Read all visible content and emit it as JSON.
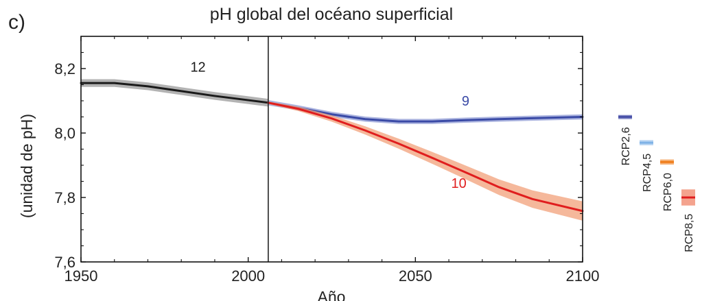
{
  "panel_label": "c)",
  "chart_data": {
    "type": "line",
    "title": "pH global del océano superficial",
    "xlabel": "Año",
    "ylabel": "(unidad de pH)",
    "xlim": [
      1950,
      2100
    ],
    "ylim": [
      7.6,
      8.3
    ],
    "x_ticks": [
      1950,
      2000,
      2050,
      2100
    ],
    "x_tick_labels": [
      "1950",
      "2000",
      "2050",
      "2100"
    ],
    "y_ticks": [
      7.6,
      7.8,
      8.0,
      8.2
    ],
    "y_tick_labels": [
      "7,6",
      "7,8",
      "8,0",
      "8,2"
    ],
    "divider_year": 2006,
    "grid": false,
    "series": [
      {
        "key": "historical",
        "color": "#1a1a1a",
        "band_color": "#9a9a9a",
        "label": "12",
        "label_at": [
          1985,
          8.19
        ],
        "x": [
          1950,
          1960,
          1970,
          1980,
          1990,
          2000,
          2006
        ],
        "y": [
          8.155,
          8.155,
          8.145,
          8.13,
          8.115,
          8.102,
          8.094
        ],
        "uncertainty": 0.012
      },
      {
        "key": "rcp26",
        "color": "#3a4aa6",
        "band_color": "#8e9ad4",
        "label": "9",
        "label_at": [
          2065,
          8.085
        ],
        "x": [
          2006,
          2015,
          2025,
          2035,
          2045,
          2055,
          2065,
          2075,
          2085,
          2100
        ],
        "y": [
          8.094,
          8.078,
          8.058,
          8.043,
          8.036,
          8.036,
          8.04,
          8.043,
          8.046,
          8.05
        ],
        "uncertainty": 0.008
      },
      {
        "key": "rcp85",
        "color": "#e01e1e",
        "band_color": "#f2a07a",
        "label": "10",
        "label_at": [
          2063,
          7.83
        ],
        "x": [
          2006,
          2015,
          2025,
          2035,
          2045,
          2055,
          2065,
          2075,
          2085,
          2100
        ],
        "y": [
          8.094,
          8.075,
          8.045,
          8.008,
          7.967,
          7.923,
          7.878,
          7.832,
          7.795,
          7.758
        ],
        "uncertainty_start": 0.004,
        "uncertainty_end": 0.03
      }
    ],
    "scenario_bars": [
      {
        "name": "RCP2,6",
        "value": 8.05,
        "low": 8.044,
        "high": 8.056,
        "color": "#4a52a8",
        "band_color": "#6c74bc"
      },
      {
        "name": "RCP4,5",
        "value": 7.97,
        "low": 7.962,
        "high": 7.978,
        "color": "#7fb2e6",
        "band_color": "#aacdf0"
      },
      {
        "name": "RCP6,0",
        "value": 7.91,
        "low": 7.902,
        "high": 7.918,
        "color": "#ef7d1a",
        "band_color": "#f4a763"
      },
      {
        "name": "RCP8,5",
        "value": 7.8,
        "low": 7.775,
        "high": 7.825,
        "color": "#e01e1e",
        "band_color": "#f2937a"
      }
    ]
  }
}
